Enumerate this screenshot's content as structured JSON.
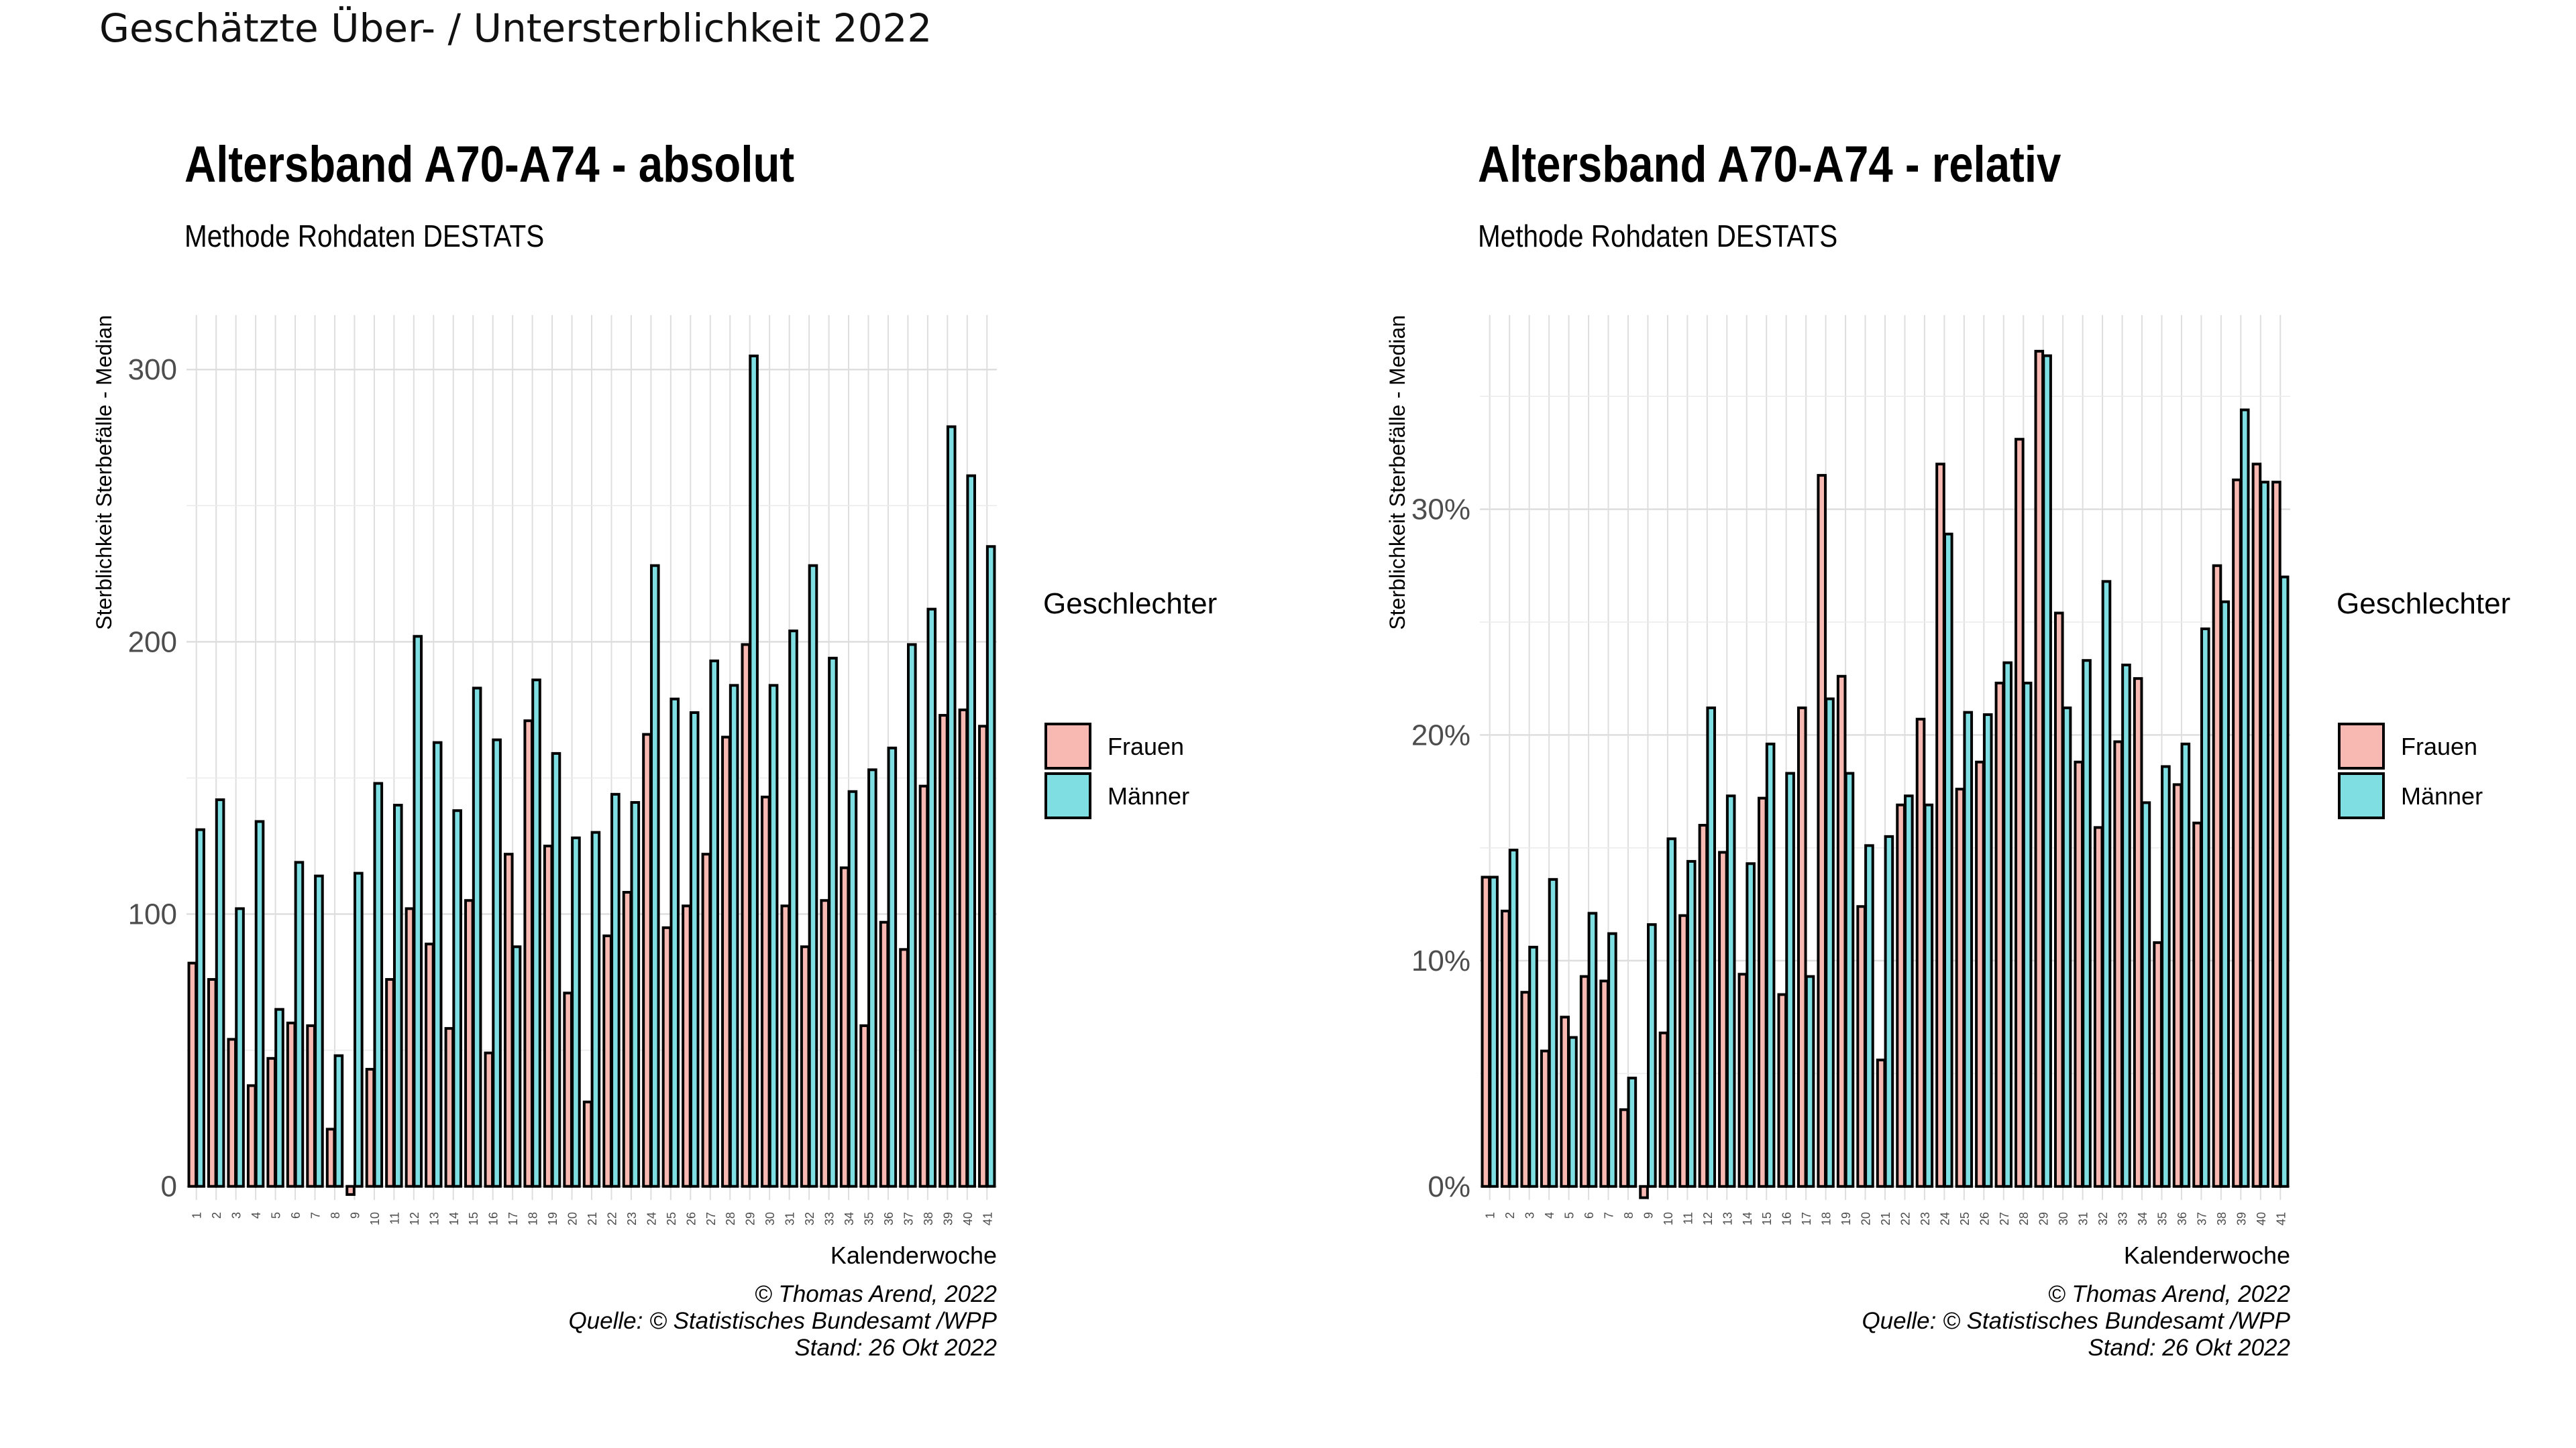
{
  "page_title": "Geschätzte Über- / Untersterblichkeit 2022",
  "colors": {
    "frauen": "#F8B9B2",
    "maenner": "#7FDEE2",
    "grid": "#DEDEDE",
    "bar_border": "#000000"
  },
  "chart_data": [
    {
      "type": "bar",
      "title": "Altersband A70-A74 - absolut",
      "subtitle": "Methode Rohdaten DESTATS",
      "xlabel": "Kalenderwoche",
      "ylabel": "Sterblichkeit Sterbefälle - Median",
      "ylim": [
        -5,
        320
      ],
      "yticks": [
        0,
        100,
        200,
        300
      ],
      "ytick_labels": [
        "0",
        "100",
        "200",
        "300"
      ],
      "grid": true,
      "legend_title": "Geschlechter",
      "legend_position": "right",
      "categories": [
        "1",
        "2",
        "3",
        "4",
        "5",
        "6",
        "7",
        "8",
        "9",
        "10",
        "11",
        "12",
        "13",
        "14",
        "15",
        "16",
        "17",
        "18",
        "19",
        "20",
        "21",
        "22",
        "23",
        "24",
        "25",
        "26",
        "27",
        "28",
        "29",
        "30",
        "31",
        "32",
        "33",
        "34",
        "35",
        "36",
        "37",
        "38",
        "39",
        "40",
        "41"
      ],
      "series": [
        {
          "name": "Frauen",
          "values": [
            82,
            76,
            54,
            37,
            47,
            60,
            59,
            21,
            -3,
            43,
            76,
            102,
            89,
            58,
            105,
            49,
            122,
            171,
            125,
            71,
            31,
            92,
            108,
            166,
            95,
            103,
            122,
            165,
            199,
            143,
            103,
            88,
            105,
            117,
            59,
            97,
            87,
            147,
            173,
            175,
            169
          ]
        },
        {
          "name": "Männer",
          "values": [
            131,
            142,
            102,
            134,
            65,
            119,
            114,
            48,
            115,
            148,
            140,
            202,
            163,
            138,
            183,
            164,
            88,
            186,
            159,
            128,
            130,
            144,
            141,
            228,
            179,
            174,
            193,
            184,
            305,
            184,
            204,
            228,
            194,
            145,
            153,
            161,
            199,
            212,
            279,
            261,
            235
          ]
        }
      ],
      "footer": [
        "© Thomas Arend, 2022",
        "Quelle: © Statistisches Bundesamt /WPP",
        "Stand: 26 Okt 2022"
      ]
    },
    {
      "type": "bar",
      "title": "Altersband A70-A74 - relativ",
      "subtitle": "Methode Rohdaten DESTATS",
      "xlabel": "Kalenderwoche",
      "ylabel": "Sterblichkeit Sterbefälle - Median",
      "ylim": [
        -0.6,
        38.6
      ],
      "yticks": [
        0,
        10,
        20,
        30
      ],
      "ytick_labels": [
        "0%",
        "10%",
        "20%",
        "30%"
      ],
      "grid": true,
      "legend_title": "Geschlechter",
      "legend_position": "right",
      "categories": [
        "1",
        "2",
        "3",
        "4",
        "5",
        "6",
        "7",
        "8",
        "9",
        "10",
        "11",
        "12",
        "13",
        "14",
        "15",
        "16",
        "17",
        "18",
        "19",
        "20",
        "21",
        "22",
        "23",
        "24",
        "25",
        "26",
        "27",
        "28",
        "29",
        "30",
        "31",
        "32",
        "33",
        "34",
        "35",
        "36",
        "37",
        "38",
        "39",
        "40",
        "41"
      ],
      "series": [
        {
          "name": "Frauen",
          "values": [
            13.7,
            12.2,
            8.6,
            6.0,
            7.5,
            9.3,
            9.1,
            3.4,
            -0.5,
            6.8,
            12.0,
            16.0,
            14.8,
            9.4,
            17.2,
            8.5,
            21.2,
            31.5,
            22.6,
            12.4,
            5.6,
            16.9,
            20.7,
            32.0,
            17.6,
            18.8,
            22.3,
            33.1,
            37.0,
            25.4,
            18.8,
            15.9,
            19.7,
            22.5,
            10.8,
            17.8,
            16.1,
            27.5,
            31.3,
            32.0,
            31.2
          ]
        },
        {
          "name": "Männer",
          "values": [
            13.7,
            14.9,
            10.6,
            13.6,
            6.6,
            12.1,
            11.2,
            4.8,
            11.6,
            15.4,
            14.4,
            21.2,
            17.3,
            14.3,
            19.6,
            18.3,
            9.3,
            21.6,
            18.3,
            15.1,
            15.5,
            17.3,
            16.9,
            28.9,
            21.0,
            20.9,
            23.2,
            22.3,
            36.8,
            21.2,
            23.3,
            26.8,
            23.1,
            17.0,
            18.6,
            19.6,
            24.7,
            25.9,
            34.4,
            31.2,
            27.0
          ]
        }
      ],
      "footer": [
        "© Thomas Arend, 2022",
        "Quelle: © Statistisches Bundesamt /WPP",
        "Stand: 26 Okt 2022"
      ]
    }
  ]
}
